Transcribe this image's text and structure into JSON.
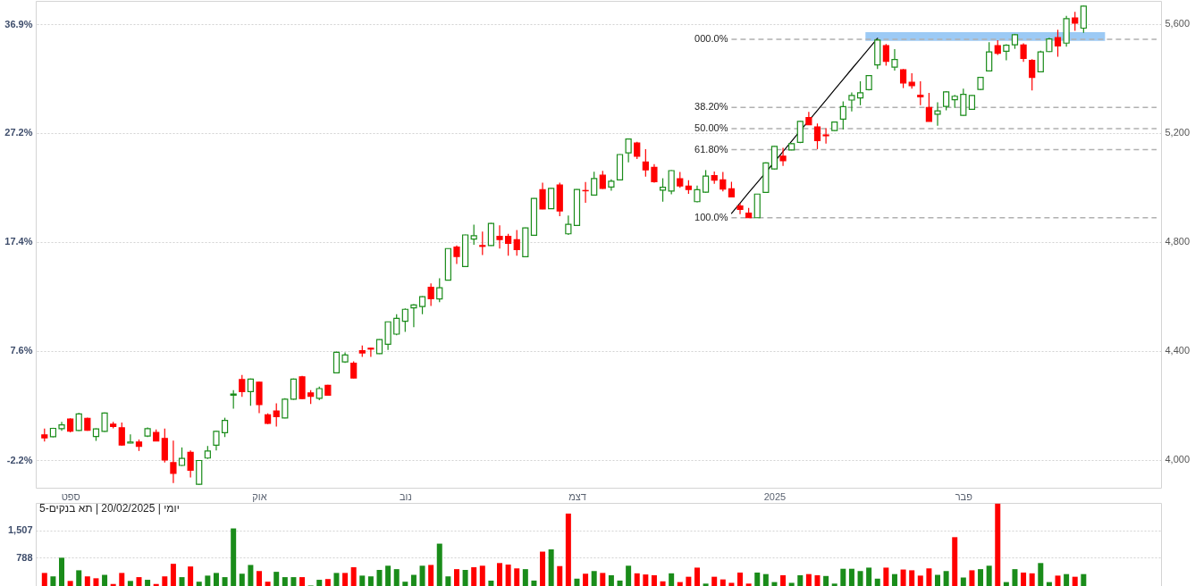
{
  "chart_data": [
    {
      "type": "candlestick",
      "categories": [
        null,
        null,
        null,
        "ספט",
        null,
        null,
        null,
        null,
        null,
        null,
        null,
        null,
        null,
        null,
        null,
        null,
        null,
        null,
        null,
        null,
        null,
        null,
        null,
        null,
        null,
        "אוק",
        null,
        null,
        null,
        null,
        null,
        null,
        null,
        null,
        null,
        null,
        null,
        null,
        null,
        null,
        null,
        null,
        "נוב",
        null,
        null,
        null,
        null,
        null,
        null,
        null,
        null,
        null,
        null,
        null,
        null,
        null,
        null,
        null,
        null,
        null,
        null,
        null,
        "דצמ",
        null,
        null,
        null,
        null,
        null,
        null,
        null,
        null,
        null,
        null,
        null,
        null,
        null,
        null,
        null,
        null,
        null,
        null,
        null,
        null,
        null,
        null,
        "2025",
        null,
        null,
        null,
        null,
        null,
        null,
        null,
        null,
        null,
        null,
        null,
        null,
        null,
        null,
        null,
        null,
        null,
        null,
        null,
        null,
        null,
        "פבר",
        null,
        null,
        null,
        null,
        null,
        null,
        null,
        null,
        null,
        null,
        null,
        null,
        null,
        null,
        null,
        null,
        null,
        null,
        null,
        null,
        null,
        null
      ],
      "ohlc": [
        [
          4092,
          4115,
          4068,
          4081
        ],
        [
          4085,
          4118,
          4083,
          4116
        ],
        [
          4115,
          4140,
          4107,
          4129
        ],
        [
          4150,
          4153,
          4101,
          4106
        ],
        [
          4108,
          4173,
          4106,
          4169
        ],
        [
          4153,
          4155,
          4107,
          4109
        ],
        [
          4086,
          4116,
          4070,
          4114
        ],
        [
          4105,
          4174,
          4103,
          4172
        ],
        [
          4131,
          4140,
          4116,
          4123
        ],
        [
          4118,
          4137,
          4052,
          4055
        ],
        [
          4062,
          4094,
          4061,
          4066
        ],
        [
          4066,
          4075,
          4033,
          4050
        ],
        [
          4088,
          4119,
          4084,
          4115
        ],
        [
          4101,
          4112,
          4069,
          4070
        ],
        [
          4079,
          4115,
          3991,
          4000
        ],
        [
          3990,
          4071,
          3915,
          3951
        ],
        [
          3980,
          4046,
          3978,
          4006
        ],
        [
          4028,
          4035,
          3936,
          3962
        ],
        [
          3911,
          4000,
          3909,
          3998
        ],
        [
          4007,
          4051,
          4004,
          4033
        ],
        [
          4054,
          4107,
          4035,
          4105
        ],
        [
          4100,
          4155,
          4084,
          4145
        ],
        [
          4238,
          4256,
          4188,
          4242
        ],
        [
          4295,
          4312,
          4232,
          4251
        ],
        [
          4251,
          4299,
          4199,
          4297
        ],
        [
          4285,
          4287,
          4172,
          4203
        ],
        [
          4166,
          4171,
          4132,
          4134
        ],
        [
          4180,
          4208,
          4123,
          4159
        ],
        [
          4154,
          4227,
          4153,
          4223
        ],
        [
          4223,
          4299,
          4221,
          4297
        ],
        [
          4305,
          4309,
          4223,
          4225
        ],
        [
          4246,
          4256,
          4205,
          4234
        ],
        [
          4226,
          4269,
          4219,
          4262
        ],
        [
          4274,
          4276,
          4236,
          4238
        ],
        [
          4320,
          4398,
          4318,
          4395
        ],
        [
          4360,
          4395,
          4356,
          4385
        ],
        [
          4355,
          4362,
          4300,
          4301
        ],
        [
          4401,
          4420,
          4378,
          4393
        ],
        [
          4410,
          4411,
          4378,
          4407
        ],
        [
          4390,
          4443,
          4389,
          4442
        ],
        [
          4425,
          4508,
          4404,
          4507
        ],
        [
          4462,
          4535,
          4458,
          4520
        ],
        [
          4509,
          4556,
          4470,
          4553
        ],
        [
          4558,
          4572,
          4487,
          4569
        ],
        [
          4563,
          4601,
          4535,
          4599
        ],
        [
          4634,
          4648,
          4565,
          4592
        ],
        [
          4591,
          4667,
          4579,
          4632
        ],
        [
          4660,
          4777,
          4659,
          4776
        ],
        [
          4781,
          4787,
          4719,
          4747
        ],
        [
          4710,
          4827,
          4708,
          4826
        ],
        [
          4811,
          4864,
          4790,
          4823
        ],
        [
          4787,
          4838,
          4752,
          4784
        ],
        [
          4787,
          4870,
          4786,
          4868
        ],
        [
          4821,
          4861,
          4776,
          4809
        ],
        [
          4821,
          4830,
          4750,
          4795
        ],
        [
          4808,
          4844,
          4750,
          4772
        ],
        [
          4746,
          4853,
          4745,
          4852
        ],
        [
          4825,
          4961,
          4823,
          4960
        ],
        [
          4992,
          5018,
          4920,
          4921
        ],
        [
          4922,
          4998,
          4921,
          4997
        ],
        [
          5009,
          5018,
          4895,
          4914
        ],
        [
          4830,
          4897,
          4826,
          4865
        ],
        [
          4861,
          4994,
          4860,
          4993
        ],
        [
          4989,
          5020,
          4944,
          4988
        ],
        [
          4972,
          5058,
          4971,
          5033
        ],
        [
          5045,
          5061,
          4995,
          4997
        ],
        [
          5002,
          5030,
          4988,
          5023
        ],
        [
          5028,
          5122,
          5027,
          5121
        ],
        [
          5127,
          5179,
          5092,
          5178
        ],
        [
          5163,
          5168,
          5105,
          5115
        ],
        [
          5094,
          5141,
          5040,
          5065
        ],
        [
          5074,
          5086,
          5018,
          5021
        ],
        [
          4990,
          5034,
          4948,
          5001
        ],
        [
          4987,
          5064,
          4975,
          5062
        ],
        [
          5032,
          5057,
          4999,
          5006
        ],
        [
          5005,
          5027,
          4977,
          4993
        ],
        [
          4948,
          5007,
          4946,
          4992
        ],
        [
          4983,
          5064,
          4981,
          5042
        ],
        [
          5044,
          5059,
          5014,
          5027
        ],
        [
          5028,
          5057,
          4986,
          4994
        ],
        [
          4995,
          5021,
          4964,
          4966
        ],
        [
          4932,
          4942,
          4902,
          4920
        ],
        [
          4906,
          4925,
          4888,
          4889
        ],
        [
          4889,
          4977,
          4888,
          4976
        ],
        [
          4982,
          5092,
          4981,
          5090
        ],
        [
          5068,
          5152,
          5066,
          5151
        ],
        [
          5115,
          5146,
          5079,
          5098
        ],
        [
          5138,
          5164,
          5137,
          5161
        ],
        [
          5166,
          5244,
          5163,
          5243
        ],
        [
          5257,
          5278,
          5230,
          5230
        ],
        [
          5222,
          5235,
          5141,
          5172
        ],
        [
          5193,
          5218,
          5161,
          5190
        ],
        [
          5209,
          5241,
          5208,
          5240
        ],
        [
          5251,
          5316,
          5213,
          5297
        ],
        [
          5321,
          5349,
          5279,
          5338
        ],
        [
          5329,
          5390,
          5302,
          5348
        ],
        [
          5359,
          5413,
          5356,
          5411
        ],
        [
          5450,
          5546,
          5435,
          5541
        ],
        [
          5521,
          5527,
          5447,
          5463
        ],
        [
          5442,
          5508,
          5429,
          5470
        ],
        [
          5432,
          5435,
          5365,
          5384
        ],
        [
          5386,
          5419,
          5363,
          5374
        ],
        [
          5339,
          5390,
          5302,
          5333
        ],
        [
          5294,
          5347,
          5243,
          5243
        ],
        [
          5269,
          5313,
          5227,
          5281
        ],
        [
          5298,
          5354,
          5283,
          5351
        ],
        [
          5322,
          5340,
          5292,
          5335
        ],
        [
          5265,
          5363,
          5264,
          5342
        ],
        [
          5287,
          5339,
          5285,
          5338
        ],
        [
          5360,
          5405,
          5357,
          5404
        ],
        [
          5428,
          5533,
          5426,
          5498
        ],
        [
          5521,
          5541,
          5487,
          5493
        ],
        [
          5500,
          5526,
          5467,
          5522
        ],
        [
          5524,
          5564,
          5509,
          5561
        ],
        [
          5523,
          5529,
          5461,
          5474
        ],
        [
          5467,
          5471,
          5356,
          5404
        ],
        [
          5425,
          5502,
          5423,
          5498
        ],
        [
          5499,
          5550,
          5497,
          5545
        ],
        [
          5550,
          5579,
          5480,
          5520
        ],
        [
          5530,
          5630,
          5517,
          5620
        ],
        [
          5622,
          5645,
          5575,
          5603
        ],
        [
          5585,
          5668,
          5568,
          5666
        ],
        null,
        null,
        null,
        null,
        null,
        null,
        null,
        null
      ],
      "colors": [
        "#ff0000",
        "#1a8c1a",
        "#1a8c1a",
        "#ff0000",
        "#1a8c1a",
        "#ff0000",
        "#1a8c1a",
        "#1a8c1a",
        "#ff0000",
        "#ff0000",
        "#1a8c1a",
        "#ff0000",
        "#1a8c1a",
        "#ff0000",
        "#ff0000",
        "#ff0000",
        "#1a8c1a",
        "#ff0000",
        "#1a8c1a",
        "#1a8c1a",
        "#1a8c1a",
        "#1a8c1a",
        "#1a8c1a",
        "#ff0000",
        "#1a8c1a",
        "#ff0000",
        "#ff0000",
        "#ff0000",
        "#1a8c1a",
        "#1a8c1a",
        "#ff0000",
        "#ff0000",
        "#1a8c1a",
        "#ff0000",
        "#1a8c1a",
        "#1a8c1a",
        "#ff0000",
        "#ff0000",
        "#ff0000",
        "#1a8c1a",
        "#1a8c1a",
        "#1a8c1a",
        "#1a8c1a",
        "#1a8c1a",
        "#1a8c1a",
        "#ff0000",
        "#1a8c1a",
        "#1a8c1a",
        "#ff0000",
        "#1a8c1a",
        "#1a8c1a",
        "#ff0000",
        "#1a8c1a",
        "#ff0000",
        "#ff0000",
        "#ff0000",
        "#1a8c1a",
        "#1a8c1a",
        "#ff0000",
        "#1a8c1a",
        "#ff0000",
        "#1a8c1a",
        "#1a8c1a",
        "#ff0000",
        "#1a8c1a",
        "#ff0000",
        "#1a8c1a",
        "#1a8c1a",
        "#1a8c1a",
        "#ff0000",
        "#ff0000",
        "#ff0000",
        "#1a8c1a",
        "#1a8c1a",
        "#ff0000",
        "#ff0000",
        "#1a8c1a",
        "#1a8c1a",
        "#ff0000",
        "#ff0000",
        "#ff0000",
        "#ff0000",
        "#ff0000",
        "#1a8c1a",
        "#1a8c1a",
        "#1a8c1a",
        "#ff0000",
        "#1a8c1a",
        "#1a8c1a",
        "#ff0000",
        "#ff0000",
        "#ff0000",
        "#1a8c1a",
        "#1a8c1a",
        "#1a8c1a",
        "#1a8c1a",
        "#1a8c1a",
        "#1a8c1a",
        "#ff0000",
        "#1a8c1a",
        "#ff0000",
        "#ff0000",
        "#ff0000",
        "#ff0000",
        "#1a8c1a",
        "#1a8c1a",
        "#1a8c1a",
        "#1a8c1a",
        "#1a8c1a",
        "#1a8c1a",
        "#1a8c1a",
        "#ff0000",
        "#1a8c1a",
        "#1a8c1a",
        "#ff0000",
        "#ff0000",
        "#1a8c1a",
        "#1a8c1a",
        "#ff0000",
        "#1a8c1a",
        "#ff0000",
        "#1a8c1a",
        null,
        null,
        null,
        null,
        null,
        null,
        null,
        null
      ],
      "series": [
        {
          "type": "line",
          "color": "#000000",
          "values": [
            null,
            null,
            null,
            null,
            null,
            null,
            null,
            null,
            null,
            null,
            null,
            null,
            null,
            null,
            null,
            null,
            null,
            null,
            null,
            null,
            null,
            null,
            null,
            null,
            null,
            null,
            null,
            null,
            null,
            null,
            null,
            null,
            null,
            null,
            null,
            null,
            null,
            null,
            null,
            null,
            null,
            null,
            null,
            null,
            null,
            null,
            null,
            null,
            null,
            null,
            null,
            null,
            null,
            null,
            null,
            null,
            null,
            null,
            null,
            null,
            null,
            null,
            null,
            null,
            null,
            null,
            null,
            null,
            null,
            null,
            null,
            null,
            null,
            null,
            null,
            null,
            null,
            null,
            null,
            null,
            4905,
            4943,
            4981,
            5018,
            5056,
            5094,
            5132,
            5170,
            5208,
            5245,
            5283,
            5321,
            5359,
            5397,
            5435,
            5472,
            5510,
            5548,
            null,
            null,
            null,
            null,
            null,
            null,
            null,
            null,
            null,
            null,
            null,
            null,
            null,
            null,
            null,
            null,
            null,
            null,
            null,
            null,
            null,
            null,
            null,
            null,
            null,
            null,
            null,
            null,
            null,
            null,
            null,
            null
          ]
        }
      ],
      "ylim": [
        3898,
        5685
      ],
      "yticks": [
        {
          "value": 4000,
          "label": "4,000"
        },
        {
          "value": 4400,
          "label": "4,400"
        },
        {
          "value": 4800,
          "label": "4,800"
        },
        {
          "value": 5200,
          "label": "5,200"
        },
        {
          "value": 5600,
          "label": "5,600"
        }
      ],
      "y2lim": [
        -4.68,
        39.02
      ],
      "y2ticks": [
        {
          "value": -2.2,
          "label": "-2.2%"
        },
        {
          "value": 7.6,
          "label": "7.6%"
        },
        {
          "value": 17.4,
          "label": "17.4%"
        },
        {
          "value": 27.2,
          "label": "27.2%"
        },
        {
          "value": 36.9,
          "label": "36.9%"
        }
      ],
      "ref_lines": [
        {
          "axis": "y",
          "value": 5544,
          "color": "#b0b0b0",
          "line_style": "dashed"
        },
        {
          "axis": "y",
          "value": 5294,
          "color": "#b0b0b0",
          "line_style": "dashed"
        },
        {
          "axis": "y",
          "value": 5216,
          "color": "#b0b0b0",
          "line_style": "dashed"
        },
        {
          "axis": "y",
          "value": 5139,
          "color": "#b0b0b0",
          "line_style": "dashed"
        },
        {
          "axis": "y",
          "value": 4889,
          "color": "#b0b0b0",
          "line_style": "dashed"
        }
      ],
      "annotations": [
        "000.0%",
        "38.20%",
        "50.00%",
        "61.80%",
        "100.0%"
      ],
      "bands": [
        {
          "axis": "y",
          "from": 5538,
          "to": 5570,
          "color": "#9ccaf5"
        }
      ],
      "grid": "y"
    },
    {
      "type": "bar",
      "categories": [
        null,
        null,
        null,
        null,
        null,
        null,
        null,
        null,
        null,
        null,
        null,
        null,
        null,
        null,
        null,
        null,
        null,
        null,
        null,
        null,
        null,
        null,
        null,
        null,
        null,
        null,
        null,
        null,
        null,
        null,
        null,
        null,
        null,
        null,
        null,
        null,
        null,
        null,
        null,
        null,
        null,
        null,
        null,
        null,
        null,
        null,
        null,
        null,
        null,
        null,
        null,
        null,
        null,
        null,
        null,
        null,
        null,
        null,
        null,
        null,
        null,
        null,
        null,
        null,
        null,
        null,
        null,
        null,
        null,
        null,
        null,
        null,
        null,
        null,
        null,
        null,
        null,
        null,
        null,
        null,
        null,
        null,
        null,
        null,
        null,
        null,
        null,
        null,
        null,
        null,
        null,
        null,
        null,
        null,
        null,
        null,
        null,
        null,
        null,
        null,
        null,
        null,
        null,
        null,
        null,
        null,
        null,
        null,
        null,
        null,
        null,
        null,
        null,
        null,
        null,
        null,
        null,
        null,
        null,
        null,
        null,
        null,
        null,
        null,
        null,
        null,
        null,
        null,
        null,
        null
      ],
      "values": [
        390,
        300,
        790,
        180,
        460,
        300,
        250,
        340,
        100,
        390,
        180,
        280,
        210,
        100,
        300,
        630,
        280,
        560,
        160,
        320,
        390,
        280,
        1560,
        370,
        600,
        440,
        160,
        420,
        280,
        280,
        280,
        60,
        210,
        230,
        390,
        390,
        540,
        320,
        300,
        470,
        580,
        490,
        160,
        340,
        580,
        600,
        1160,
        300,
        490,
        470,
        540,
        580,
        190,
        650,
        610,
        510,
        490,
        190,
        950,
        1010,
        570,
        1950,
        240,
        370,
        440,
        390,
        330,
        190,
        580,
        380,
        350,
        330,
        170,
        380,
        150,
        290,
        530,
        110,
        290,
        220,
        130,
        400,
        110,
        400,
        360,
        150,
        330,
        130,
        330,
        360,
        330,
        310,
        110,
        500,
        500,
        440,
        530,
        240,
        530,
        360,
        480,
        460,
        320,
        510,
        340,
        440,
        1330,
        270,
        460,
        490,
        580,
        2210,
        150,
        490,
        400,
        380,
        650,
        150,
        320,
        360,
        290,
        360,
        null,
        null,
        null,
        null,
        null,
        null,
        null,
        null
      ],
      "colors": [
        "#ff0000",
        "#1a8c1a",
        "#1a8c1a",
        "#ff0000",
        "#1a8c1a",
        "#ff0000",
        "#ff0000",
        "#1a8c1a",
        "#ff0000",
        "#ff0000",
        "#1a8c1a",
        "#ff0000",
        "#1a8c1a",
        "#ff0000",
        "#ff0000",
        "#ff0000",
        "#1a8c1a",
        "#ff0000",
        "#1a8c1a",
        "#1a8c1a",
        "#1a8c1a",
        "#1a8c1a",
        "#1a8c1a",
        "#1a8c1a",
        "#1a8c1a",
        "#ff0000",
        "#ff0000",
        "#1a8c1a",
        "#1a8c1a",
        "#1a8c1a",
        "#ff0000",
        "#1a8c1a",
        "#1a8c1a",
        "#ff0000",
        "#1a8c1a",
        "#ff0000",
        "#ff0000",
        "#1a8c1a",
        "#1a8c1a",
        "#1a8c1a",
        "#1a8c1a",
        "#1a8c1a",
        "#1a8c1a",
        "#1a8c1a",
        "#1a8c1a",
        "#ff0000",
        "#1a8c1a",
        "#1a8c1a",
        "#ff0000",
        "#1a8c1a",
        "#ff0000",
        "#ff0000",
        "#1a8c1a",
        "#ff0000",
        "#ff0000",
        "#ff0000",
        "#1a8c1a",
        "#1a8c1a",
        "#ff0000",
        "#1a8c1a",
        "#ff0000",
        "#ff0000",
        "#1a8c1a",
        "#ff0000",
        "#1a8c1a",
        "#ff0000",
        "#1a8c1a",
        "#1a8c1a",
        "#1a8c1a",
        "#ff0000",
        "#ff0000",
        "#ff0000",
        "#ff0000",
        "#1a8c1a",
        "#ff0000",
        "#ff0000",
        "#ff0000",
        "#1a8c1a",
        "#ff0000",
        "#ff0000",
        "#ff0000",
        "#ff0000",
        "#ff0000",
        "#1a8c1a",
        "#1a8c1a",
        "#1a8c1a",
        "#ff0000",
        "#1a8c1a",
        "#1a8c1a",
        "#ff0000",
        "#ff0000",
        "#1a8c1a",
        "#1a8c1a",
        "#1a8c1a",
        "#1a8c1a",
        "#1a8c1a",
        "#1a8c1a",
        "#1a8c1a",
        "#ff0000",
        "#1a8c1a",
        "#ff0000",
        "#ff0000",
        "#ff0000",
        "#ff0000",
        "#1a8c1a",
        "#1a8c1a",
        "#ff0000",
        "#1a8c1a",
        "#ff0000",
        "#1a8c1a",
        "#1a8c1a",
        "#ff0000",
        "#1a8c1a",
        "#1a8c1a",
        "#ff0000",
        "#ff0000",
        "#1a8c1a",
        "#1a8c1a",
        "#ff0000",
        "#1a8c1a",
        "#ff0000",
        "#1a8c1a",
        null,
        null,
        null,
        null,
        null,
        null,
        null,
        null
      ],
      "ylim": [
        0,
        2230
      ],
      "yticks": [
        788,
        {
          "value": 1507,
          "label": "1,507"
        }
      ],
      "grid": "y",
      "tick_labels": "y",
      "annotations": [
        "יומי | 20/02/2025 | תא בנקים-5"
      ]
    }
  ]
}
